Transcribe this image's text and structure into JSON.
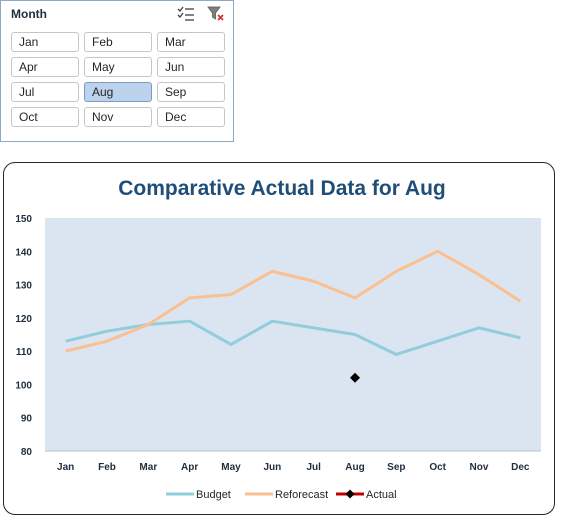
{
  "slicer": {
    "title": "Month",
    "multi_select_icon": "multi-select-icon",
    "clear_filter_icon": "clear-filter-icon",
    "items": [
      "Jan",
      "Feb",
      "Mar",
      "Apr",
      "May",
      "Jun",
      "Jul",
      "Aug",
      "Sep",
      "Oct",
      "Nov",
      "Dec"
    ],
    "selected": "Aug",
    "colors": {
      "selected_fill": "#bdd2ec",
      "border": "#8ea9c8"
    }
  },
  "chart_data": {
    "type": "line",
    "title": "Comparative Actual Data for Aug",
    "xlabel": "",
    "ylabel": "",
    "categories": [
      "Jan",
      "Feb",
      "Mar",
      "Apr",
      "May",
      "Jun",
      "Jul",
      "Aug",
      "Sep",
      "Oct",
      "Nov",
      "Dec"
    ],
    "ylim": [
      80,
      150
    ],
    "yticks": [
      80,
      90,
      100,
      110,
      120,
      130,
      140,
      150
    ],
    "grid": false,
    "plot_background": "#dbe5f1",
    "legend_position": "bottom",
    "series": [
      {
        "name": "Budget",
        "color": "#92cddc",
        "values": [
          113,
          116,
          118,
          119,
          112,
          119,
          117,
          115,
          109,
          113,
          117,
          114
        ]
      },
      {
        "name": "Reforecast",
        "color": "#fac090",
        "values": [
          110,
          113,
          118,
          126,
          127,
          134,
          131,
          126,
          134,
          140,
          133,
          125
        ]
      },
      {
        "name": "Actual",
        "color": "#000000",
        "legend_line_color": "#c00000",
        "marker": "diamond",
        "values": [
          null,
          null,
          null,
          null,
          null,
          null,
          null,
          102,
          null,
          null,
          null,
          null
        ]
      }
    ]
  }
}
